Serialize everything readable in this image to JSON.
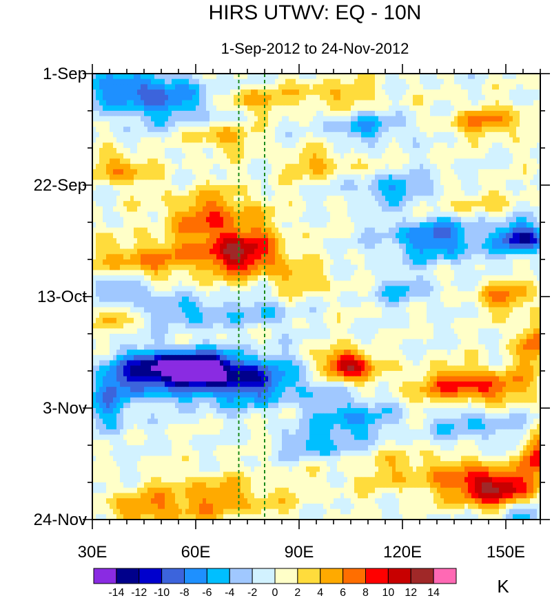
{
  "chart_data": {
    "type": "heatmap",
    "title": "HIRS UTWV: EQ - 10N",
    "subtitle": "1-Sep-2012 to 24-Nov-2012",
    "x_axis": {
      "range": [
        30,
        160
      ],
      "ticks": [
        {
          "value": 30,
          "label": "30E"
        },
        {
          "value": 60,
          "label": "60E"
        },
        {
          "value": 90,
          "label": "90E"
        },
        {
          "value": 120,
          "label": "120E"
        },
        {
          "value": 150,
          "label": "150E"
        }
      ],
      "minor_step": 5
    },
    "y_axis": {
      "range_days": [
        0,
        84
      ],
      "direction": "top-to-bottom",
      "ticks": [
        {
          "day": 0,
          "label": "1-Sep"
        },
        {
          "day": 21,
          "label": "22-Sep"
        },
        {
          "day": 42,
          "label": "13-Oct"
        },
        {
          "day": 63,
          "label": "3-Nov"
        },
        {
          "day": 84,
          "label": "24-Nov"
        }
      ],
      "minor_step_days": 7
    },
    "reference_lines": [
      {
        "longitude": 72.5,
        "style": "dashed",
        "color": "#1a8a1a"
      },
      {
        "longitude": 80,
        "style": "dashed",
        "color": "#1a8a1a"
      }
    ],
    "colorbar": {
      "levels": [
        "-14",
        "-12",
        "-10",
        "-8",
        "-6",
        "-4",
        "-2",
        "0",
        "2",
        "4",
        "6",
        "8",
        "10",
        "12",
        "14"
      ],
      "colors": [
        "#8a2be2",
        "#00008b",
        "#0000cd",
        "#3c64dc",
        "#1e90ff",
        "#00bfff",
        "#a0c8ff",
        "#d2f2ff",
        "#ffffc8",
        "#ffdc3c",
        "#ffaa00",
        "#ff6e00",
        "#ff0000",
        "#c80000",
        "#a02828",
        "#ff69b4"
      ],
      "units": "K"
    },
    "features": [
      {
        "lon": 73,
        "day": 34,
        "value": 11,
        "sx": 9,
        "sy": 3
      },
      {
        "lon": 65,
        "day": 27,
        "value": 7,
        "sx": 10,
        "sy": 3.5
      },
      {
        "lon": 45,
        "day": 35,
        "value": 6,
        "sx": 10,
        "sy": 2.5
      },
      {
        "lon": 104,
        "day": 55,
        "value": 13,
        "sx": 5,
        "sy": 2
      },
      {
        "lon": 140,
        "day": 59,
        "value": 9,
        "sx": 12,
        "sy": 2.5
      },
      {
        "lon": 158,
        "day": 51,
        "value": 7,
        "sx": 4,
        "sy": 3
      },
      {
        "lon": 146,
        "day": 78,
        "value": 12,
        "sx": 8,
        "sy": 2.5
      },
      {
        "lon": 159,
        "day": 72,
        "value": 9,
        "sx": 3,
        "sy": 3
      },
      {
        "lon": 125,
        "day": 75,
        "value": 4,
        "sx": 15,
        "sy": 3
      },
      {
        "lon": 65,
        "day": 80,
        "value": 5,
        "sx": 15,
        "sy": 3
      },
      {
        "lon": 45,
        "day": 82,
        "value": 4,
        "sx": 10,
        "sy": 2
      },
      {
        "lon": 38,
        "day": 18,
        "value": 6,
        "sx": 6,
        "sy": 2
      },
      {
        "lon": 68,
        "day": 12,
        "value": 5,
        "sx": 6,
        "sy": 2
      },
      {
        "lon": 75,
        "day": 5,
        "value": 6,
        "sx": 7,
        "sy": 1.8
      },
      {
        "lon": 100,
        "day": 4,
        "value": 4,
        "sx": 10,
        "sy": 2
      },
      {
        "lon": 145,
        "day": 9,
        "value": 6,
        "sx": 8,
        "sy": 2
      },
      {
        "lon": 95,
        "day": 17,
        "value": 4,
        "sx": 8,
        "sy": 2
      },
      {
        "lon": 135,
        "day": 24,
        "value": 4,
        "sx": 10,
        "sy": 2
      },
      {
        "lon": 150,
        "day": 42,
        "value": 6,
        "sx": 6,
        "sy": 2
      },
      {
        "lon": 35,
        "day": 46,
        "value": 5,
        "sx": 3,
        "sy": 1.5
      },
      {
        "lon": 92,
        "day": 39,
        "value": 4,
        "sx": 6,
        "sy": 2
      },
      {
        "lon": 58,
        "day": 55,
        "value": -13,
        "sx": 10,
        "sy": 2
      },
      {
        "lon": 72,
        "day": 58,
        "value": -11,
        "sx": 13,
        "sy": 3
      },
      {
        "lon": 45,
        "day": 57,
        "value": -8,
        "sx": 8,
        "sy": 3
      },
      {
        "lon": 50,
        "day": 5,
        "value": -7,
        "sx": 14,
        "sy": 3
      },
      {
        "lon": 40,
        "day": 2,
        "value": -5,
        "sx": 8,
        "sy": 2
      },
      {
        "lon": 130,
        "day": 31,
        "value": -8,
        "sx": 10,
        "sy": 3
      },
      {
        "lon": 155,
        "day": 31,
        "value": -12,
        "sx": 5,
        "sy": 2
      },
      {
        "lon": 120,
        "day": 22,
        "value": -6,
        "sx": 10,
        "sy": 2
      },
      {
        "lon": 105,
        "day": 65,
        "value": -6,
        "sx": 8,
        "sy": 3
      },
      {
        "lon": 95,
        "day": 70,
        "value": -5,
        "sx": 6,
        "sy": 2
      },
      {
        "lon": 60,
        "day": 45,
        "value": -5,
        "sx": 8,
        "sy": 2
      },
      {
        "lon": 35,
        "day": 62,
        "value": -6,
        "sx": 4,
        "sy": 4
      },
      {
        "lon": 140,
        "day": 66,
        "value": -4,
        "sx": 10,
        "sy": 3
      },
      {
        "lon": 120,
        "day": 41,
        "value": -4,
        "sx": 6,
        "sy": 2
      },
      {
        "lon": 40,
        "day": 41,
        "value": -5,
        "sx": 6,
        "sy": 2
      },
      {
        "lon": 155,
        "day": 84,
        "value": -6,
        "sx": 4,
        "sy": 2
      },
      {
        "lon": 110,
        "day": 10,
        "value": -5,
        "sx": 8,
        "sy": 2
      },
      {
        "lon": 80,
        "day": 45,
        "value": -4,
        "sx": 5,
        "sy": 2
      }
    ]
  }
}
